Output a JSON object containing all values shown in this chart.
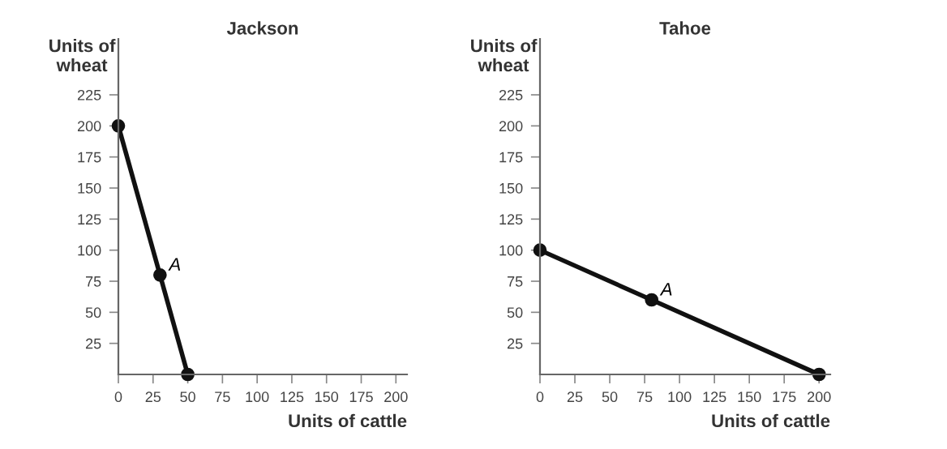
{
  "chart_data": [
    {
      "type": "line",
      "title": "Jackson",
      "xlabel": "Units of cattle",
      "ylabel": "Units of\nwheat",
      "series": [
        {
          "color": "#111111",
          "x": [
            0,
            30,
            50
          ],
          "values": [
            200,
            80,
            0
          ]
        }
      ],
      "marker": "circle",
      "line_style": "solid",
      "annotations": [
        {
          "text": "A",
          "x": 30,
          "y": 80
        }
      ],
      "xlim": [
        0,
        208
      ],
      "ylim": [
        0,
        270
      ],
      "xticks": [
        0,
        25,
        50,
        75,
        100,
        125,
        150,
        175,
        200
      ],
      "yticks": [
        25,
        50,
        75,
        100,
        125,
        150,
        175,
        200,
        225
      ],
      "grid": false
    },
    {
      "type": "line",
      "title": "Tahoe",
      "xlabel": "Units of cattle",
      "ylabel": "Units of\nwheat",
      "series": [
        {
          "color": "#111111",
          "x": [
            0,
            80,
            200
          ],
          "values": [
            100,
            60,
            0
          ]
        }
      ],
      "marker": "circle",
      "line_style": "solid",
      "annotations": [
        {
          "text": "A",
          "x": 80,
          "y": 60
        }
      ],
      "xlim": [
        0,
        208
      ],
      "ylim": [
        0,
        270
      ],
      "xticks": [
        0,
        25,
        50,
        75,
        100,
        125,
        150,
        175,
        200
      ],
      "yticks": [
        25,
        50,
        75,
        100,
        125,
        150,
        175,
        200,
        225
      ],
      "grid": false
    }
  ]
}
